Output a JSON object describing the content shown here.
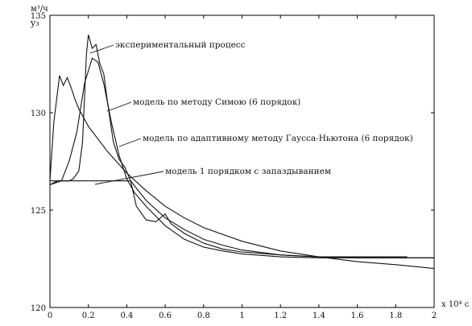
{
  "chart_data": {
    "type": "line",
    "xlabel": "x 10⁴ c",
    "ylabel_unit": "м³/ч",
    "ylabel": "y₃",
    "xlim": [
      0,
      2
    ],
    "ylim": [
      120,
      135
    ],
    "x_ticks": [
      0,
      0.2,
      0.4,
      0.6,
      0.8,
      1,
      1.2,
      1.4,
      1.6,
      1.8,
      2
    ],
    "x_tick_labels": [
      "0",
      "0.2",
      "0.4",
      "0.6",
      "0.8",
      "1",
      "1.2",
      "1.4",
      "1.6",
      "1.8",
      "2"
    ],
    "y_ticks": [
      120,
      125,
      130,
      135
    ],
    "y_tick_labels": [
      "120",
      "125",
      "130",
      "135"
    ],
    "grid": false,
    "series": [
      {
        "name": "экспериментальный процесс",
        "x": [
          0,
          0.04,
          0.08,
          0.1,
          0.12,
          0.15,
          0.17,
          0.19,
          0.2,
          0.22,
          0.24,
          0.26,
          0.28,
          0.3,
          0.33,
          0.36,
          0.39,
          0.42,
          0.45,
          0.5,
          0.55,
          0.6,
          0.63,
          0.7,
          0.8,
          0.9,
          1.0,
          1.2,
          1.4,
          1.6,
          1.8,
          1.86
        ],
        "y": [
          126.3,
          126.5,
          126.5,
          126.5,
          126.6,
          127.0,
          128.5,
          133.0,
          134.0,
          133.3,
          133.5,
          132.5,
          132.0,
          130.5,
          128.5,
          127.6,
          127.2,
          126.5,
          125.2,
          124.5,
          124.4,
          124.8,
          124.3,
          123.8,
          123.3,
          123.0,
          122.85,
          122.7,
          122.6,
          122.6,
          122.6,
          122.6
        ]
      },
      {
        "name": "модель по методу Симою (6 порядок)",
        "x": [
          0,
          0.06,
          0.1,
          0.14,
          0.18,
          0.22,
          0.25,
          0.28,
          0.32,
          0.36,
          0.4,
          0.44,
          0.5,
          0.6,
          0.7,
          0.8,
          0.9,
          1.0,
          1.2,
          1.4,
          1.6,
          1.8,
          2.0
        ],
        "y": [
          126.3,
          126.5,
          127.5,
          129.0,
          131.5,
          132.8,
          132.6,
          131.5,
          129.5,
          127.8,
          126.6,
          125.9,
          125.2,
          124.2,
          123.5,
          123.1,
          122.9,
          122.75,
          122.6,
          122.55,
          122.55,
          122.55,
          122.55
        ]
      },
      {
        "name": "модель по адаптивному методу Гаусса-Ньютона (6 порядок)",
        "x": [
          0,
          0.02,
          0.05,
          0.07,
          0.09,
          0.11,
          0.13,
          0.15,
          0.2,
          0.3,
          0.4,
          0.5,
          0.6,
          0.7,
          0.8,
          1.0,
          1.2,
          1.4,
          1.6,
          1.8,
          2.0
        ],
        "y": [
          126.5,
          129.5,
          131.9,
          131.4,
          131.8,
          131.3,
          130.7,
          130.2,
          129.3,
          128.0,
          126.9,
          126.0,
          125.2,
          124.6,
          124.1,
          123.4,
          122.9,
          122.6,
          122.35,
          122.2,
          122.0
        ]
      },
      {
        "name": "модель 1 порядком с запаздыванием",
        "x": [
          0,
          0.1,
          0.2,
          0.3,
          0.4,
          0.42,
          0.5,
          0.6,
          0.7,
          0.8,
          0.9,
          1.0,
          1.2,
          1.4,
          1.6,
          1.8,
          2.0
        ],
        "y": [
          126.5,
          126.5,
          126.5,
          126.5,
          126.5,
          126.5,
          125.5,
          124.6,
          124.0,
          123.5,
          123.2,
          122.95,
          122.7,
          122.6,
          122.55,
          122.55,
          122.55
        ]
      }
    ],
    "annotations": [
      {
        "text": "экспериментальный процесс",
        "series": 0
      },
      {
        "text": "модель по методу Симою (6 порядок)",
        "series": 1
      },
      {
        "text": "модель по адаптивному методу Гаусса-Ньютона (6 порядок)",
        "series": 2
      },
      {
        "text": "модель 1 порядком с запаздыванием",
        "series": 3
      }
    ]
  }
}
